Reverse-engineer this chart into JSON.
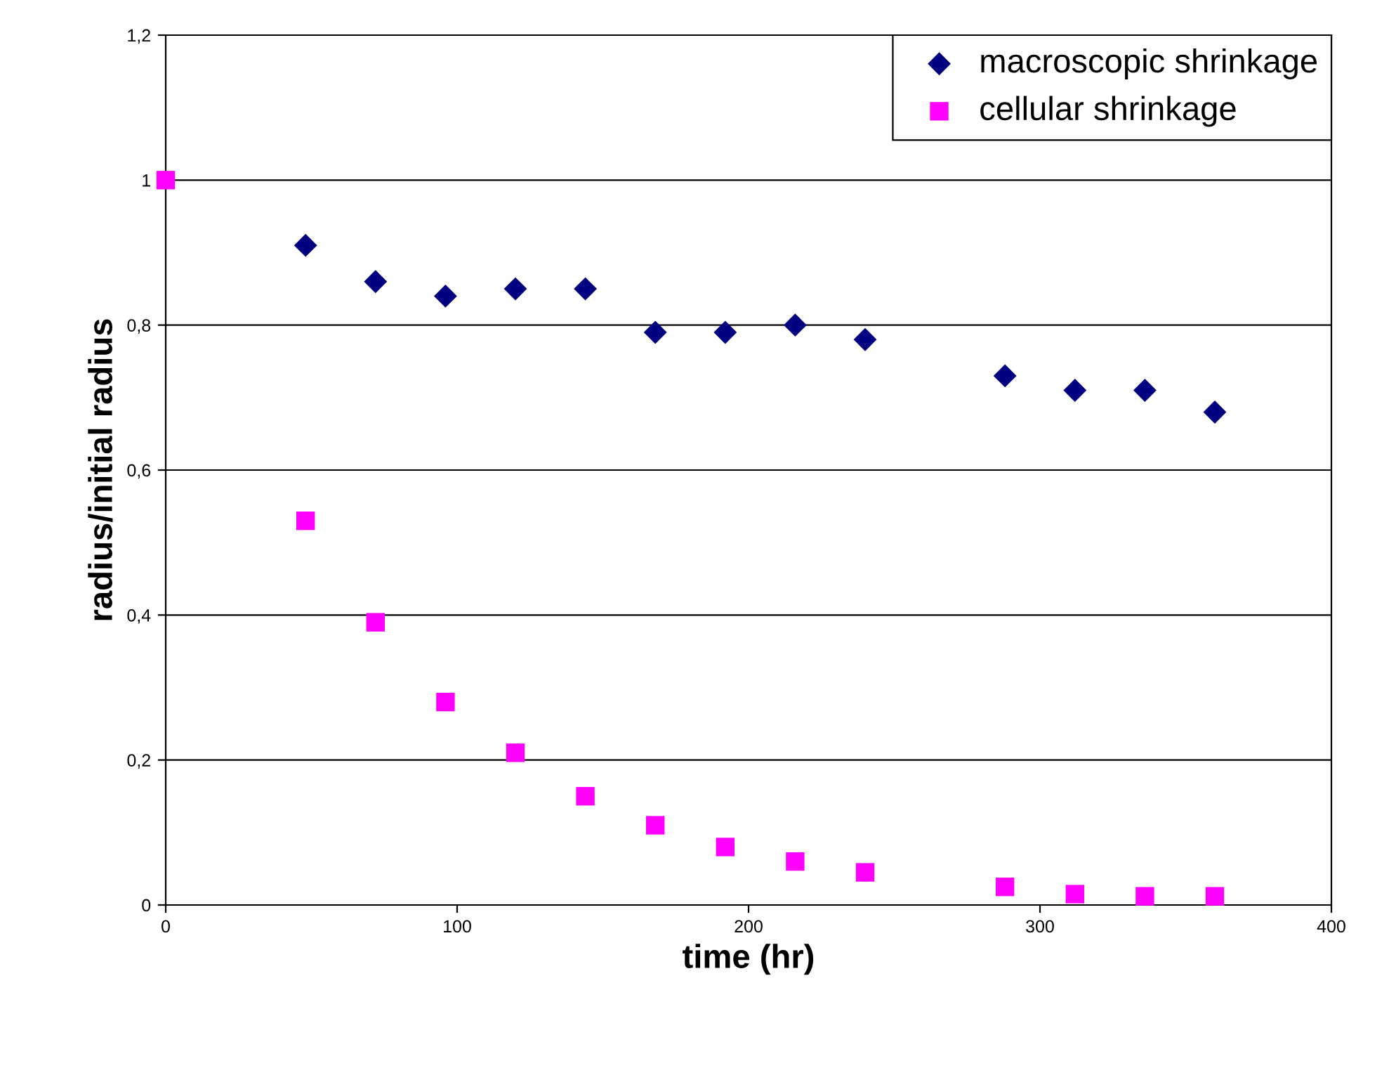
{
  "chart_data": {
    "type": "scatter",
    "xlabel": "time (hr)",
    "ylabel": "radius/initial radius",
    "xlim": [
      0,
      400
    ],
    "xticks": [
      0,
      100,
      200,
      300,
      400
    ],
    "ylim": [
      0,
      1.2
    ],
    "yticks": [
      0,
      {
        "value": 0.2,
        "label": "0,2"
      },
      {
        "value": 0.4,
        "label": "0,4"
      },
      {
        "value": 0.6,
        "label": "0,6"
      },
      {
        "value": 0.8,
        "label": "0,8"
      },
      {
        "value": 1,
        "label": "1"
      },
      {
        "value": 1.2,
        "label": "1,2"
      }
    ],
    "grid": "y",
    "legend": "top right",
    "series": [
      {
        "name": "macroscopic shrinkage",
        "color": "#000080",
        "marker": "diamond",
        "x": [
          48,
          72,
          96,
          120,
          144,
          168,
          192,
          216,
          240,
          288,
          312,
          336,
          360
        ],
        "values": [
          0.91,
          0.86,
          0.84,
          0.85,
          0.85,
          0.79,
          0.79,
          0.8,
          0.78,
          0.73,
          0.71,
          0.71,
          0.68
        ]
      },
      {
        "name": "cellular shrinkage",
        "color": "#ff00ff",
        "marker": "square",
        "x": [
          0,
          48,
          72,
          96,
          120,
          144,
          168,
          192,
          216,
          240,
          288,
          312,
          336,
          360
        ],
        "values": [
          1.0,
          0.53,
          0.39,
          0.28,
          0.21,
          0.15,
          0.11,
          0.08,
          0.06,
          0.045,
          0.025,
          0.015,
          0.012,
          0.012
        ]
      }
    ]
  }
}
